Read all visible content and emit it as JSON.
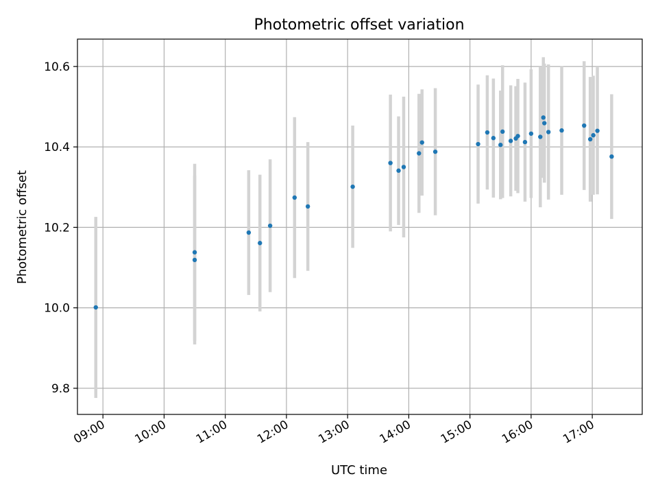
{
  "chart_data": {
    "type": "scatter",
    "title": "Photometric offset variation",
    "xlabel": "UTC time",
    "ylabel": "Photometric offset",
    "x_ticks": [
      "09:00",
      "10:00",
      "11:00",
      "12:00",
      "13:00",
      "14:00",
      "15:00",
      "16:00",
      "17:00"
    ],
    "y_ticks": [
      "9.8",
      "10.0",
      "10.2",
      "10.4",
      "10.6"
    ],
    "xlim": [
      "08:35",
      "17:49"
    ],
    "ylim": [
      9.735,
      10.668
    ],
    "grid": true,
    "marker_color": "#1f77b4",
    "errorbar_color": "#d3d3d3",
    "points": [
      {
        "x": "08:53",
        "y": 10.001,
        "err": 0.225
      },
      {
        "x": "10:30",
        "y": 10.138,
        "err": 0.22
      },
      {
        "x": "10:30",
        "y": 10.119,
        "err": 0.21
      },
      {
        "x": "11:23",
        "y": 10.187,
        "err": 0.155
      },
      {
        "x": "11:34",
        "y": 10.161,
        "err": 0.17
      },
      {
        "x": "11:44",
        "y": 10.204,
        "err": 0.165
      },
      {
        "x": "12:08",
        "y": 10.274,
        "err": 0.2
      },
      {
        "x": "12:21",
        "y": 10.252,
        "err": 0.16
      },
      {
        "x": "13:05",
        "y": 10.301,
        "err": 0.152
      },
      {
        "x": "13:42",
        "y": 10.36,
        "err": 0.17
      },
      {
        "x": "13:50",
        "y": 10.341,
        "err": 0.135
      },
      {
        "x": "13:55",
        "y": 10.35,
        "err": 0.175
      },
      {
        "x": "14:10",
        "y": 10.384,
        "err": 0.148
      },
      {
        "x": "14:13",
        "y": 10.411,
        "err": 0.132
      },
      {
        "x": "14:26",
        "y": 10.388,
        "err": 0.158
      },
      {
        "x": "15:08",
        "y": 10.407,
        "err": 0.148
      },
      {
        "x": "15:17",
        "y": 10.436,
        "err": 0.142
      },
      {
        "x": "15:23",
        "y": 10.422,
        "err": 0.148
      },
      {
        "x": "15:30",
        "y": 10.405,
        "err": 0.135
      },
      {
        "x": "15:32",
        "y": 10.438,
        "err": 0.165
      },
      {
        "x": "15:40",
        "y": 10.415,
        "err": 0.138
      },
      {
        "x": "15:45",
        "y": 10.421,
        "err": 0.13
      },
      {
        "x": "15:47",
        "y": 10.427,
        "err": 0.142
      },
      {
        "x": "15:54",
        "y": 10.412,
        "err": 0.148
      },
      {
        "x": "16:00",
        "y": 10.433,
        "err": 0.16
      },
      {
        "x": "16:09",
        "y": 10.425,
        "err": 0.175
      },
      {
        "x": "16:12",
        "y": 10.473,
        "err": 0.15
      },
      {
        "x": "16:13",
        "y": 10.459,
        "err": 0.148
      },
      {
        "x": "16:17",
        "y": 10.437,
        "err": 0.168
      },
      {
        "x": "16:30",
        "y": 10.441,
        "err": 0.16
      },
      {
        "x": "16:52",
        "y": 10.453,
        "err": 0.16
      },
      {
        "x": "16:58",
        "y": 10.419,
        "err": 0.155
      },
      {
        "x": "17:01",
        "y": 10.429,
        "err": 0.148
      },
      {
        "x": "17:05",
        "y": 10.44,
        "err": 0.158
      },
      {
        "x": "17:19",
        "y": 10.376,
        "err": 0.155
      }
    ]
  }
}
